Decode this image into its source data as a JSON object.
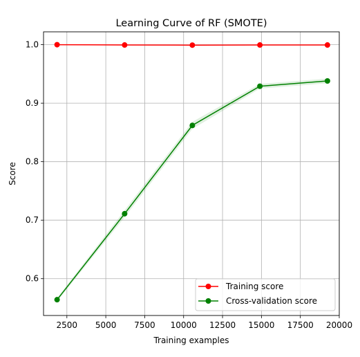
{
  "chart_data": {
    "type": "line",
    "title": "Learning Curve of RF (SMOTE)",
    "xlabel": "Training examples",
    "ylabel": "Score",
    "xlim": [
      1000,
      20000
    ],
    "ylim": [
      0.537,
      1.022
    ],
    "xticks": [
      2500,
      5000,
      7500,
      10000,
      12500,
      15000,
      17500,
      20000
    ],
    "yticks": [
      0.6,
      0.7,
      0.8,
      0.9,
      1.0
    ],
    "xtick_labels": [
      "2500",
      "5000",
      "7500",
      "10000",
      "12500",
      "15000",
      "17500",
      "20000"
    ],
    "ytick_labels": [
      "0.6",
      "0.7",
      "0.8",
      "0.9",
      "1.0"
    ],
    "grid": true,
    "legend_position": "lower-right",
    "x": [
      1870,
      6210,
      10560,
      14900,
      19240
    ],
    "series": [
      {
        "name": "Training score",
        "color": "#ff0000",
        "band_color": "#ff0000",
        "values": [
          1.0,
          0.9995,
          0.9993,
          0.9995,
          0.9995
        ],
        "std": [
          0.0002,
          0.0003,
          0.0003,
          0.0002,
          0.0002
        ]
      },
      {
        "name": "Cross-validation score",
        "color": "#008000",
        "band_color": "#008000",
        "values": [
          0.564,
          0.711,
          0.862,
          0.929,
          0.938
        ],
        "std": [
          0.003,
          0.006,
          0.006,
          0.004,
          0.004
        ]
      }
    ]
  }
}
